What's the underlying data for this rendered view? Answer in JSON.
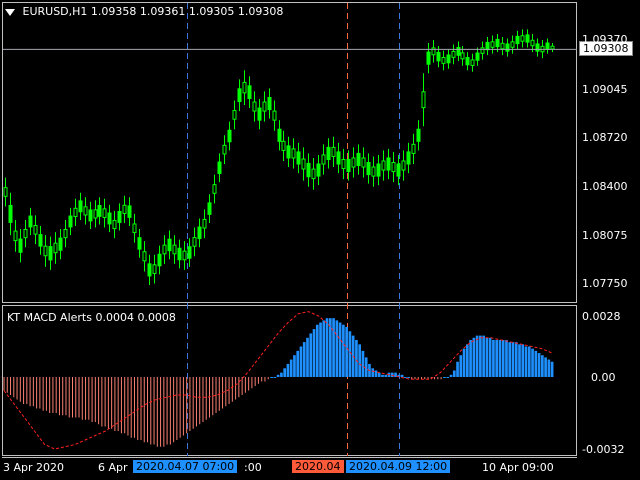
{
  "main_chart": {
    "header": "EURUSD,H1  1.09358 1.09361 1.09305 1.09308",
    "current_price": "1.09308",
    "y_labels": [
      "1.09370",
      "1.09045",
      "1.08720",
      "1.08400",
      "1.08075",
      "1.07750"
    ],
    "candles_high_low": [
      [
        1.0846,
        1.0827
      ],
      [
        1.0836,
        1.0808
      ],
      [
        1.0818,
        1.0797
      ],
      [
        1.0812,
        1.079
      ],
      [
        1.0818,
        1.08
      ],
      [
        1.0826,
        1.0808
      ],
      [
        1.0821,
        1.0802
      ],
      [
        1.0814,
        1.0795
      ],
      [
        1.0808,
        1.0787
      ],
      [
        1.0807,
        1.0785
      ],
      [
        1.081,
        1.0789
      ],
      [
        1.0812,
        1.0792
      ],
      [
        1.0818,
        1.08
      ],
      [
        1.0826,
        1.0808
      ],
      [
        1.0832,
        1.0814
      ],
      [
        1.0836,
        1.0818
      ],
      [
        1.0833,
        1.0815
      ],
      [
        1.083,
        1.0812
      ],
      [
        1.0831,
        1.0813
      ],
      [
        1.0833,
        1.0815
      ],
      [
        1.0832,
        1.0813
      ],
      [
        1.0828,
        1.081
      ],
      [
        1.0824,
        1.0806
      ],
      [
        1.0829,
        1.0811
      ],
      [
        1.0834,
        1.0816
      ],
      [
        1.0833,
        1.0814
      ],
      [
        1.0822,
        1.0803
      ],
      [
        1.0812,
        1.0793
      ],
      [
        1.0804,
        1.0784
      ],
      [
        1.0795,
        1.0775
      ],
      [
        1.0795,
        1.0776
      ],
      [
        1.0801,
        1.0782
      ],
      [
        1.0808,
        1.0789
      ],
      [
        1.0811,
        1.0792
      ],
      [
        1.0808,
        1.0789
      ],
      [
        1.0805,
        1.0786
      ],
      [
        1.0804,
        1.0785
      ],
      [
        1.0806,
        1.0787
      ],
      [
        1.0813,
        1.0794
      ],
      [
        1.0819,
        1.08
      ],
      [
        1.0825,
        1.0806
      ],
      [
        1.0835,
        1.0816
      ],
      [
        1.0848,
        1.0829
      ],
      [
        1.0862,
        1.0843
      ],
      [
        1.0874,
        1.0855
      ],
      [
        1.0883,
        1.0864
      ],
      [
        1.0897,
        1.0878
      ],
      [
        1.0911,
        1.089
      ],
      [
        1.0917,
        1.0894
      ],
      [
        1.0913,
        1.0892
      ],
      [
        1.0903,
        1.0883
      ],
      [
        1.0898,
        1.0878
      ],
      [
        1.0903,
        1.0883
      ],
      [
        1.0905,
        1.0885
      ],
      [
        1.0897,
        1.0877
      ],
      [
        1.0884,
        1.0864
      ],
      [
        1.0877,
        1.0857
      ],
      [
        1.0873,
        1.0853
      ],
      [
        1.0872,
        1.0852
      ],
      [
        1.0869,
        1.0849
      ],
      [
        1.0866,
        1.0844
      ],
      [
        1.0862,
        1.084
      ],
      [
        1.0859,
        1.0838
      ],
      [
        1.0861,
        1.0841
      ],
      [
        1.0868,
        1.0848
      ],
      [
        1.0872,
        1.0852
      ],
      [
        1.0873,
        1.0853
      ],
      [
        1.0869,
        1.0849
      ],
      [
        1.0865,
        1.0845
      ],
      [
        1.0864,
        1.0844
      ],
      [
        1.0866,
        1.0846
      ],
      [
        1.0868,
        1.0848
      ],
      [
        1.0866,
        1.0846
      ],
      [
        1.0862,
        1.0842
      ],
      [
        1.086,
        1.084
      ],
      [
        1.0861,
        1.0841
      ],
      [
        1.0864,
        1.0844
      ],
      [
        1.0865,
        1.0845
      ],
      [
        1.0863,
        1.0843
      ],
      [
        1.0861,
        1.0841
      ],
      [
        1.0864,
        1.0844
      ],
      [
        1.0869,
        1.0849
      ],
      [
        1.0875,
        1.0855
      ],
      [
        1.0884,
        1.0864
      ],
      [
        1.0915,
        1.088
      ],
      [
        1.0935,
        1.0915
      ],
      [
        1.0937,
        1.0922
      ],
      [
        1.0933,
        1.0919
      ],
      [
        1.093,
        1.0917
      ],
      [
        1.0931,
        1.0918
      ],
      [
        1.0934,
        1.0921
      ],
      [
        1.0936,
        1.0923
      ],
      [
        1.0933,
        1.092
      ],
      [
        1.0929,
        1.0917
      ],
      [
        1.0928,
        1.0916
      ],
      [
        1.0932,
        1.092
      ],
      [
        1.0936,
        1.0924
      ],
      [
        1.0939,
        1.0927
      ],
      [
        1.094,
        1.0928
      ],
      [
        1.0941,
        1.0929
      ],
      [
        1.0939,
        1.0927
      ],
      [
        1.0938,
        1.0926
      ],
      [
        1.094,
        1.0928
      ],
      [
        1.0943,
        1.0931
      ],
      [
        1.0944,
        1.0932
      ],
      [
        1.0944,
        1.0932
      ],
      [
        1.0941,
        1.0929
      ],
      [
        1.0938,
        1.0926
      ],
      [
        1.0937,
        1.0925
      ],
      [
        1.0938,
        1.0928
      ],
      [
        1.0935,
        1.0929
      ]
    ]
  },
  "indicator": {
    "header": "KT MACD Alerts 0.0004 0.0008",
    "y_labels": [
      "0.0028",
      "0.00",
      "-0.0032"
    ],
    "histogram": [
      -0.0006,
      -0.0007,
      -0.0008,
      -0.0009,
      -0.001,
      -0.0011,
      -0.0012,
      -0.0012,
      -0.0013,
      -0.0013,
      -0.0014,
      -0.0014,
      -0.0015,
      -0.0015,
      -0.0016,
      -0.0016,
      -0.0016,
      -0.0017,
      -0.0017,
      -0.0017,
      -0.0018,
      -0.0018,
      -0.0018,
      -0.0018,
      -0.0019,
      -0.0019,
      -0.0019,
      -0.002,
      -0.002,
      -0.0021,
      -0.0022,
      -0.0022,
      -0.0023,
      -0.0023,
      -0.0024,
      -0.0024,
      -0.0025,
      -0.0025,
      -0.0026,
      -0.0027,
      -0.0027,
      -0.0028,
      -0.0028,
      -0.0029,
      -0.0029,
      -0.003,
      -0.003,
      -0.0031,
      -0.0031,
      -0.0031,
      -0.003,
      -0.003,
      -0.0029,
      -0.0028,
      -0.0027,
      -0.0026,
      -0.0025,
      -0.0024,
      -0.0023,
      -0.0022,
      -0.0021,
      -0.002,
      -0.0019,
      -0.0018,
      -0.0017,
      -0.0016,
      -0.0015,
      -0.0014,
      -0.0013,
      -0.0012,
      -0.0011,
      -0.001,
      -0.0009,
      -0.0008,
      -0.0007,
      -0.0006,
      -0.0005,
      -0.0004,
      -0.0003,
      -0.0002,
      -0.0002,
      -0.0001,
      0.0,
      0.0,
      0.0001,
      0.0002,
      0.0004,
      0.0006,
      0.0008,
      0.001,
      0.0012,
      0.0014,
      0.0016,
      0.0018,
      0.002,
      0.0022,
      0.0024,
      0.0025,
      0.0026,
      0.0027,
      0.0027,
      0.0027,
      0.0026,
      0.0025,
      0.0024,
      0.0023,
      0.0021,
      0.0019,
      0.0017,
      0.0015,
      0.0012,
      0.0009,
      0.0006,
      0.0004,
      0.0003,
      0.0002,
      0.0001,
      0.0001,
      0.0002,
      0.0002,
      0.0002,
      0.0001,
      0.0001,
      0.0,
      0.0,
      -0.0001,
      -0.0001,
      -0.0001,
      -0.0001,
      -0.0001,
      -0.0001,
      -0.0001,
      -0.0001,
      -0.0001,
      -0.0001,
      0.0,
      0.0,
      0.0001,
      0.0003,
      0.0007,
      0.001,
      0.0013,
      0.0015,
      0.0017,
      0.0018,
      0.0019,
      0.0019,
      0.0019,
      0.0018,
      0.0018,
      0.0017,
      0.0017,
      0.0017,
      0.0017,
      0.0017,
      0.0016,
      0.0016,
      0.0016,
      0.0015,
      0.0015,
      0.0014,
      0.0014,
      0.0013,
      0.0012,
      0.0011,
      0.001,
      0.0009,
      0.0008,
      0.0007
    ],
    "signal": [
      -0.0006,
      -0.0012,
      -0.0018,
      -0.0024,
      -0.003,
      -0.0032,
      -0.0031,
      -0.003,
      -0.0028,
      -0.0026,
      -0.0024,
      -0.0021,
      -0.0018,
      -0.0015,
      -0.0012,
      -0.001,
      -0.0009,
      -0.0008,
      -0.0008,
      -0.0009,
      -0.0009,
      -0.0008,
      -0.0006,
      -0.0003,
      0.0002,
      0.0008,
      0.0014,
      0.002,
      0.0025,
      0.0029,
      0.003,
      0.0028,
      0.0024,
      0.0018,
      0.0012,
      0.0006,
      0.0003,
      0.0002,
      0.0001,
      0.0,
      -0.0001,
      -0.0001,
      -0.0001,
      0.0002,
      0.0007,
      0.0012,
      0.0016,
      0.0018,
      0.0018,
      0.0017,
      0.0016,
      0.0015,
      0.0014,
      0.0013,
      0.0011
    ]
  },
  "time_axis": {
    "labels": [
      "3 Apr 2020",
      "6 Apr",
      ":00",
      "10 Apr 09:00"
    ],
    "tags": [
      "2020.04.07 07:00",
      "2020.04",
      "2020.04.09 12:00"
    ]
  },
  "colors": {
    "candle": "#00ff00",
    "grid_border": "#c0c0c0",
    "price_line": "#a6a6b4",
    "blue_vline": "#3c78dc",
    "red_vline": "#ff6a3d",
    "hist_pos": "#1e90ff",
    "hist_neg": "#fa8072",
    "signal": "#ff2020",
    "tag_blue": "#1e90ff",
    "tag_red": "#ff5a3a"
  }
}
